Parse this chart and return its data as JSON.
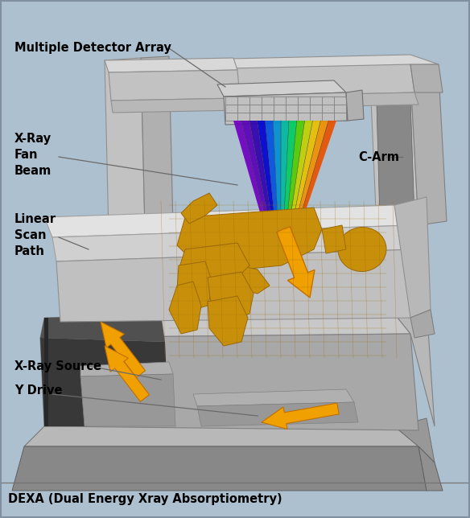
{
  "background_color": "#adc0cf",
  "bg_inner": "#adc0cf",
  "title": "DEXA (Dual Energy Xray Absorptiometry)",
  "labels": {
    "multiple_detector_array": "Multiple Detector Array",
    "xray_fan_beam": "X-Ray\nFan\nBeam",
    "linear_scan_path": "Linear\nScan\nPath",
    "c_arm": "C-Arm",
    "xray_source": "X-Ray Source",
    "y_drive": "Y Drive"
  },
  "colors": {
    "c_arm_top": "#d8d8d8",
    "c_arm_front": "#c2c2c2",
    "c_arm_side": "#b0b0b0",
    "c_arm_inner": "#888888",
    "c_arm_inner_dark": "#606060",
    "table_top_face": "#e2e2e2",
    "table_top_side": "#c8c8c8",
    "table_body_top": "#c8c8c8",
    "table_body_front": "#a8a8a8",
    "table_body_right": "#b8b8b8",
    "base_top": "#b8b8b8",
    "base_front": "#888888",
    "base_right": "#989898",
    "cavity_dark": "#404040",
    "cavity_mid": "#585858",
    "cavity_shelf_top": "#c0c0c0",
    "cavity_shelf_front": "#a0a0a0",
    "det_box_top": "#d0d0d0",
    "det_box_front": "#c0c0c0",
    "det_box_right": "#b0b0b0",
    "det_grid": "#808080",
    "arrow_fill": "#f0a000",
    "arrow_edge": "#c07000",
    "body_fill": "#c8900a",
    "body_edge": "#9a6808",
    "label_line": "#6a6a6a",
    "text_color": "#000000",
    "border": "#8090a0"
  },
  "fan_beam_colors": [
    "#7000c0",
    "#5800b8",
    "#3000b0",
    "#0000d0",
    "#0050e0",
    "#0090d0",
    "#00b8a0",
    "#00cc60",
    "#50cc00",
    "#c0d000",
    "#e8c000",
    "#f09000",
    "#e85000"
  ],
  "figsize": [
    5.84,
    6.44
  ],
  "dpi": 100
}
